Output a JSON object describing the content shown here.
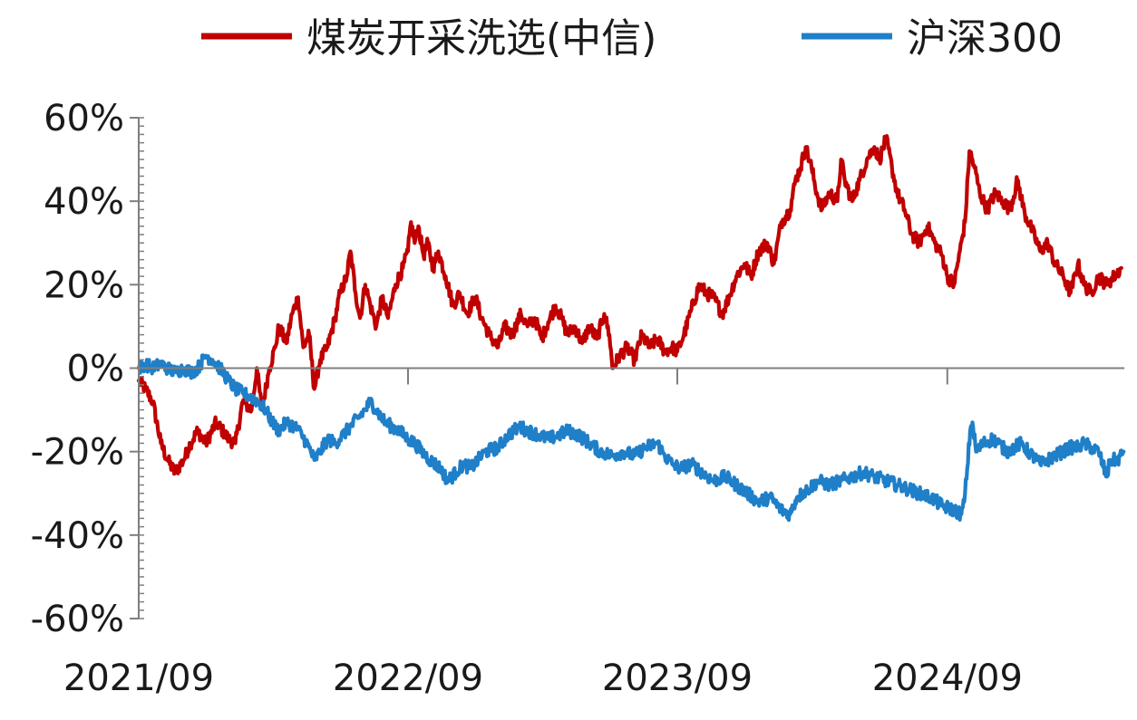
{
  "chart_data": {
    "type": "line",
    "title": "",
    "xlabel": "",
    "ylabel": "",
    "grid": false,
    "legend_position": "top",
    "y_unit": "%",
    "ylim": [
      -60,
      60
    ],
    "y_ticks": [
      60,
      40,
      20,
      0,
      -20,
      -40,
      -60
    ],
    "y_tick_labels": [
      "60%",
      "40%",
      "20%",
      "0%",
      "-20%",
      "-40%",
      "-60%"
    ],
    "xlim": [
      "2021-09",
      "2025-05"
    ],
    "x_ticks": [
      "2021-09",
      "2022-09",
      "2023-09",
      "2024-09"
    ],
    "x_tick_labels": [
      "2021/09",
      "2022/09",
      "2023/09",
      "2024/09"
    ],
    "series": [
      {
        "name": "煤炭开采洗选(中信)",
        "color": "#c00000",
        "points": [
          [
            "2021-09-01",
            -3
          ],
          [
            "2021-09-10",
            -5
          ],
          [
            "2021-09-20",
            -8
          ],
          [
            "2021-10-01",
            -18
          ],
          [
            "2021-10-10",
            -22
          ],
          [
            "2021-10-20",
            -25
          ],
          [
            "2021-11-01",
            -22
          ],
          [
            "2021-11-10",
            -18
          ],
          [
            "2021-11-20",
            -15
          ],
          [
            "2021-12-01",
            -18
          ],
          [
            "2021-12-15",
            -13
          ],
          [
            "2022-01-01",
            -17
          ],
          [
            "2022-01-10",
            -18
          ],
          [
            "2022-01-20",
            -8
          ],
          [
            "2022-02-01",
            -10
          ],
          [
            "2022-02-08",
            0
          ],
          [
            "2022-02-15",
            -10
          ],
          [
            "2022-02-25",
            0
          ],
          [
            "2022-03-05",
            5
          ],
          [
            "2022-03-10",
            10
          ],
          [
            "2022-03-20",
            6
          ],
          [
            "2022-03-28",
            13
          ],
          [
            "2022-04-05",
            17
          ],
          [
            "2022-04-12",
            5
          ],
          [
            "2022-04-20",
            8
          ],
          [
            "2022-04-27",
            -5
          ],
          [
            "2022-05-05",
            2
          ],
          [
            "2022-05-15",
            5
          ],
          [
            "2022-05-25",
            12
          ],
          [
            "2022-06-01",
            18
          ],
          [
            "2022-06-10",
            22
          ],
          [
            "2022-06-15",
            28
          ],
          [
            "2022-06-22",
            18
          ],
          [
            "2022-06-28",
            12
          ],
          [
            "2022-07-05",
            20
          ],
          [
            "2022-07-12",
            15
          ],
          [
            "2022-07-20",
            10
          ],
          [
            "2022-07-28",
            17
          ],
          [
            "2022-08-05",
            12
          ],
          [
            "2022-08-15",
            20
          ],
          [
            "2022-08-25",
            24
          ],
          [
            "2022-09-01",
            28
          ],
          [
            "2022-09-05",
            35
          ],
          [
            "2022-09-10",
            30
          ],
          [
            "2022-09-15",
            34
          ],
          [
            "2022-09-22",
            27
          ],
          [
            "2022-09-28",
            30
          ],
          [
            "2022-10-05",
            24
          ],
          [
            "2022-10-12",
            28
          ],
          [
            "2022-10-22",
            22
          ],
          [
            "2022-11-01",
            15
          ],
          [
            "2022-11-10",
            18
          ],
          [
            "2022-11-20",
            13
          ],
          [
            "2022-12-01",
            17
          ],
          [
            "2022-12-10",
            12
          ],
          [
            "2022-12-20",
            8
          ],
          [
            "2023-01-01",
            5
          ],
          [
            "2023-01-10",
            10
          ],
          [
            "2023-01-20",
            8
          ],
          [
            "2023-02-01",
            13
          ],
          [
            "2023-02-10",
            10
          ],
          [
            "2023-02-20",
            12
          ],
          [
            "2023-03-01",
            7
          ],
          [
            "2023-03-10",
            11
          ],
          [
            "2023-03-20",
            15
          ],
          [
            "2023-03-28",
            12
          ],
          [
            "2023-04-05",
            8
          ],
          [
            "2023-04-15",
            10
          ],
          [
            "2023-04-25",
            6
          ],
          [
            "2023-05-05",
            10
          ],
          [
            "2023-05-15",
            7
          ],
          [
            "2023-05-25",
            13
          ],
          [
            "2023-06-01",
            8
          ],
          [
            "2023-06-05",
            0
          ],
          [
            "2023-06-15",
            3
          ],
          [
            "2023-06-25",
            5
          ],
          [
            "2023-07-05",
            2
          ],
          [
            "2023-07-15",
            8
          ],
          [
            "2023-07-25",
            5
          ],
          [
            "2023-08-05",
            7
          ],
          [
            "2023-08-15",
            4
          ],
          [
            "2023-08-25",
            5
          ],
          [
            "2023-09-01",
            4
          ],
          [
            "2023-09-10",
            8
          ],
          [
            "2023-09-20",
            14
          ],
          [
            "2023-10-01",
            20
          ],
          [
            "2023-10-10",
            18
          ],
          [
            "2023-10-20",
            17
          ],
          [
            "2023-11-01",
            13
          ],
          [
            "2023-11-10",
            17
          ],
          [
            "2023-11-20",
            22
          ],
          [
            "2023-12-01",
            25
          ],
          [
            "2023-12-10",
            22
          ],
          [
            "2023-12-20",
            28
          ],
          [
            "2024-01-01",
            30
          ],
          [
            "2024-01-10",
            25
          ],
          [
            "2024-01-20",
            35
          ],
          [
            "2024-02-01",
            38
          ],
          [
            "2024-02-08",
            45
          ],
          [
            "2024-02-15",
            48
          ],
          [
            "2024-02-22",
            53
          ],
          [
            "2024-03-01",
            48
          ],
          [
            "2024-03-08",
            42
          ],
          [
            "2024-03-15",
            38
          ],
          [
            "2024-03-25",
            42
          ],
          [
            "2024-04-05",
            40
          ],
          [
            "2024-04-10",
            50
          ],
          [
            "2024-04-15",
            45
          ],
          [
            "2024-04-25",
            40
          ],
          [
            "2024-05-05",
            45
          ],
          [
            "2024-05-15",
            50
          ],
          [
            "2024-05-25",
            53
          ],
          [
            "2024-06-01",
            50
          ],
          [
            "2024-06-10",
            55
          ],
          [
            "2024-06-18",
            48
          ],
          [
            "2024-06-25",
            42
          ],
          [
            "2024-07-05",
            38
          ],
          [
            "2024-07-15",
            32
          ],
          [
            "2024-07-25",
            30
          ],
          [
            "2024-08-05",
            34
          ],
          [
            "2024-08-15",
            30
          ],
          [
            "2024-08-25",
            27
          ],
          [
            "2024-09-01",
            22
          ],
          [
            "2024-09-10",
            20
          ],
          [
            "2024-09-18",
            28
          ],
          [
            "2024-09-25",
            35
          ],
          [
            "2024-10-01",
            52
          ],
          [
            "2024-10-08",
            48
          ],
          [
            "2024-10-15",
            42
          ],
          [
            "2024-10-25",
            38
          ],
          [
            "2024-11-05",
            42
          ],
          [
            "2024-11-15",
            40
          ],
          [
            "2024-11-25",
            38
          ],
          [
            "2024-12-05",
            45
          ],
          [
            "2024-12-15",
            37
          ],
          [
            "2024-12-25",
            33
          ],
          [
            "2025-01-05",
            28
          ],
          [
            "2025-01-15",
            30
          ],
          [
            "2025-01-25",
            25
          ],
          [
            "2025-02-05",
            22
          ],
          [
            "2025-02-15",
            18
          ],
          [
            "2025-02-25",
            25
          ],
          [
            "2025-03-05",
            20
          ],
          [
            "2025-03-15",
            18
          ],
          [
            "2025-03-25",
            22
          ],
          [
            "2025-04-05",
            20
          ],
          [
            "2025-04-15",
            22
          ],
          [
            "2025-04-25",
            24
          ]
        ]
      },
      {
        "name": "沪深300",
        "color": "#1f7fc8",
        "points": [
          [
            "2021-09-01",
            0
          ],
          [
            "2021-09-10",
            1
          ],
          [
            "2021-09-20",
            0
          ],
          [
            "2021-10-01",
            1
          ],
          [
            "2021-10-10",
            0
          ],
          [
            "2021-10-20",
            -1
          ],
          [
            "2021-11-01",
            0
          ],
          [
            "2021-11-10",
            -1
          ],
          [
            "2021-11-20",
            0
          ],
          [
            "2021-12-01",
            3
          ],
          [
            "2021-12-10",
            2
          ],
          [
            "2021-12-20",
            0
          ],
          [
            "2022-01-01",
            -3
          ],
          [
            "2022-01-10",
            -5
          ],
          [
            "2022-01-20",
            -6
          ],
          [
            "2022-02-01",
            -7
          ],
          [
            "2022-02-10",
            -8
          ],
          [
            "2022-02-20",
            -10
          ],
          [
            "2022-03-01",
            -13
          ],
          [
            "2022-03-10",
            -15
          ],
          [
            "2022-03-20",
            -13
          ],
          [
            "2022-04-01",
            -14
          ],
          [
            "2022-04-10",
            -16
          ],
          [
            "2022-04-20",
            -19
          ],
          [
            "2022-04-27",
            -22
          ],
          [
            "2022-05-05",
            -20
          ],
          [
            "2022-05-15",
            -17
          ],
          [
            "2022-05-25",
            -18
          ],
          [
            "2022-06-05",
            -16
          ],
          [
            "2022-06-15",
            -14
          ],
          [
            "2022-06-25",
            -12
          ],
          [
            "2022-07-05",
            -10
          ],
          [
            "2022-07-12",
            -8
          ],
          [
            "2022-07-20",
            -10
          ],
          [
            "2022-08-01",
            -13
          ],
          [
            "2022-08-10",
            -14
          ],
          [
            "2022-08-20",
            -15
          ],
          [
            "2022-09-01",
            -17
          ],
          [
            "2022-09-10",
            -18
          ],
          [
            "2022-09-20",
            -20
          ],
          [
            "2022-10-01",
            -22
          ],
          [
            "2022-10-15",
            -24
          ],
          [
            "2022-10-25",
            -27
          ],
          [
            "2022-11-05",
            -25
          ],
          [
            "2022-11-15",
            -23
          ],
          [
            "2022-11-25",
            -24
          ],
          [
            "2022-12-05",
            -22
          ],
          [
            "2022-12-15",
            -20
          ],
          [
            "2023-01-01",
            -19
          ],
          [
            "2023-01-15",
            -16
          ],
          [
            "2023-01-30",
            -14
          ],
          [
            "2023-02-10",
            -15
          ],
          [
            "2023-02-25",
            -16
          ],
          [
            "2023-03-10",
            -17
          ],
          [
            "2023-03-25",
            -16
          ],
          [
            "2023-04-05",
            -15
          ],
          [
            "2023-04-20",
            -16
          ],
          [
            "2023-05-05",
            -18
          ],
          [
            "2023-05-20",
            -20
          ],
          [
            "2023-06-05",
            -21
          ],
          [
            "2023-06-20",
            -20
          ],
          [
            "2023-07-05",
            -21
          ],
          [
            "2023-07-20",
            -19
          ],
          [
            "2023-08-05",
            -18
          ],
          [
            "2023-08-15",
            -21
          ],
          [
            "2023-08-25",
            -23
          ],
          [
            "2023-09-05",
            -24
          ],
          [
            "2023-09-20",
            -23
          ],
          [
            "2023-10-05",
            -25
          ],
          [
            "2023-10-20",
            -27
          ],
          [
            "2023-11-05",
            -26
          ],
          [
            "2023-11-20",
            -28
          ],
          [
            "2023-12-05",
            -30
          ],
          [
            "2023-12-20",
            -32
          ],
          [
            "2024-01-05",
            -31
          ],
          [
            "2024-01-20",
            -34
          ],
          [
            "2024-02-01",
            -35
          ],
          [
            "2024-02-10",
            -31
          ],
          [
            "2024-02-25",
            -29
          ],
          [
            "2024-03-10",
            -27
          ],
          [
            "2024-03-25",
            -28
          ],
          [
            "2024-04-10",
            -27
          ],
          [
            "2024-04-25",
            -26
          ],
          [
            "2024-05-10",
            -25
          ],
          [
            "2024-05-25",
            -26
          ],
          [
            "2024-06-10",
            -27
          ],
          [
            "2024-06-25",
            -28
          ],
          [
            "2024-07-10",
            -29
          ],
          [
            "2024-07-25",
            -30
          ],
          [
            "2024-08-10",
            -31
          ],
          [
            "2024-08-25",
            -33
          ],
          [
            "2024-09-10",
            -34
          ],
          [
            "2024-09-20",
            -35
          ],
          [
            "2024-09-24",
            -32
          ],
          [
            "2024-09-28",
            -24
          ],
          [
            "2024-10-02",
            -15
          ],
          [
            "2024-10-05",
            -13
          ],
          [
            "2024-10-10",
            -20
          ],
          [
            "2024-10-20",
            -18
          ],
          [
            "2024-11-01",
            -17
          ],
          [
            "2024-11-10",
            -18
          ],
          [
            "2024-11-20",
            -20
          ],
          [
            "2024-12-01",
            -19
          ],
          [
            "2024-12-10",
            -18
          ],
          [
            "2024-12-20",
            -20
          ],
          [
            "2025-01-05",
            -23
          ],
          [
            "2025-01-15",
            -22
          ],
          [
            "2025-01-25",
            -21
          ],
          [
            "2025-02-05",
            -20
          ],
          [
            "2025-02-15",
            -19
          ],
          [
            "2025-02-25",
            -19
          ],
          [
            "2025-03-05",
            -18
          ],
          [
            "2025-03-15",
            -19
          ],
          [
            "2025-03-25",
            -20
          ],
          [
            "2025-04-05",
            -26
          ],
          [
            "2025-04-10",
            -22
          ],
          [
            "2025-04-20",
            -22
          ],
          [
            "2025-04-28",
            -20
          ]
        ]
      }
    ]
  }
}
